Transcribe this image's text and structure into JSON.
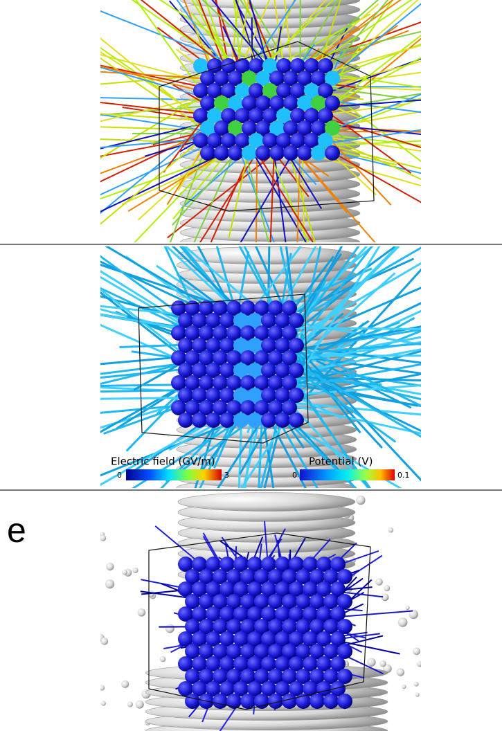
{
  "panel_label": "e",
  "colorbars": [
    {
      "title": "Electric field (GV/m)",
      "min": 0,
      "max": 3
    },
    {
      "title": "Potential (V)",
      "min": 0,
      "max": 0.1
    }
  ]
}
